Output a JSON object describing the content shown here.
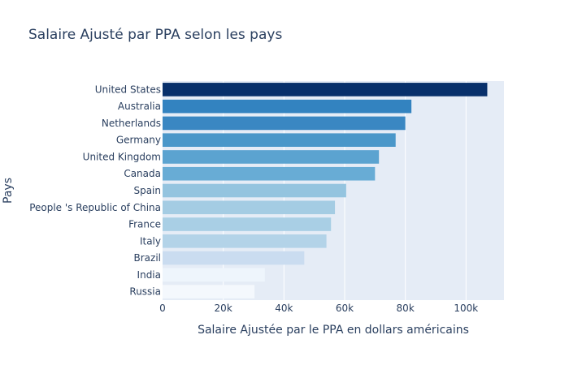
{
  "chart_data": {
    "type": "bar",
    "orientation": "horizontal",
    "title": "Salaire Ajusté par PPA selon les pays",
    "xlabel": "Salaire Ajustée par le PPA en dollars américains",
    "ylabel": "Pays",
    "xlim": [
      0,
      112500
    ],
    "x_ticks": [
      0,
      20000,
      40000,
      60000,
      80000,
      100000
    ],
    "x_tick_labels": [
      "0",
      "20k",
      "40k",
      "60k",
      "80k",
      "100k"
    ],
    "grid": true,
    "legend": "none",
    "background_color": "#e5ecf6",
    "color_scale": "Blues",
    "categories": [
      "United States",
      "Australia",
      "Netherlands",
      "Germany",
      "United Kingdom",
      "Canada",
      "Spain",
      "People 's Republic of China",
      "France",
      "Italy",
      "Brazil",
      "India",
      "Russia"
    ],
    "values": [
      107000,
      82000,
      80000,
      76800,
      71300,
      70000,
      60500,
      56800,
      55500,
      54000,
      46700,
      33700,
      30300
    ],
    "colors": [
      "#08306b",
      "#3383c0",
      "#3a87c2",
      "#4a97c9",
      "#5ba3d0",
      "#68acd5",
      "#94c4df",
      "#a4cce3",
      "#a9cfe5",
      "#b3d3e8",
      "#cadcf0",
      "#eef5fc",
      "#f4f8fd"
    ]
  }
}
